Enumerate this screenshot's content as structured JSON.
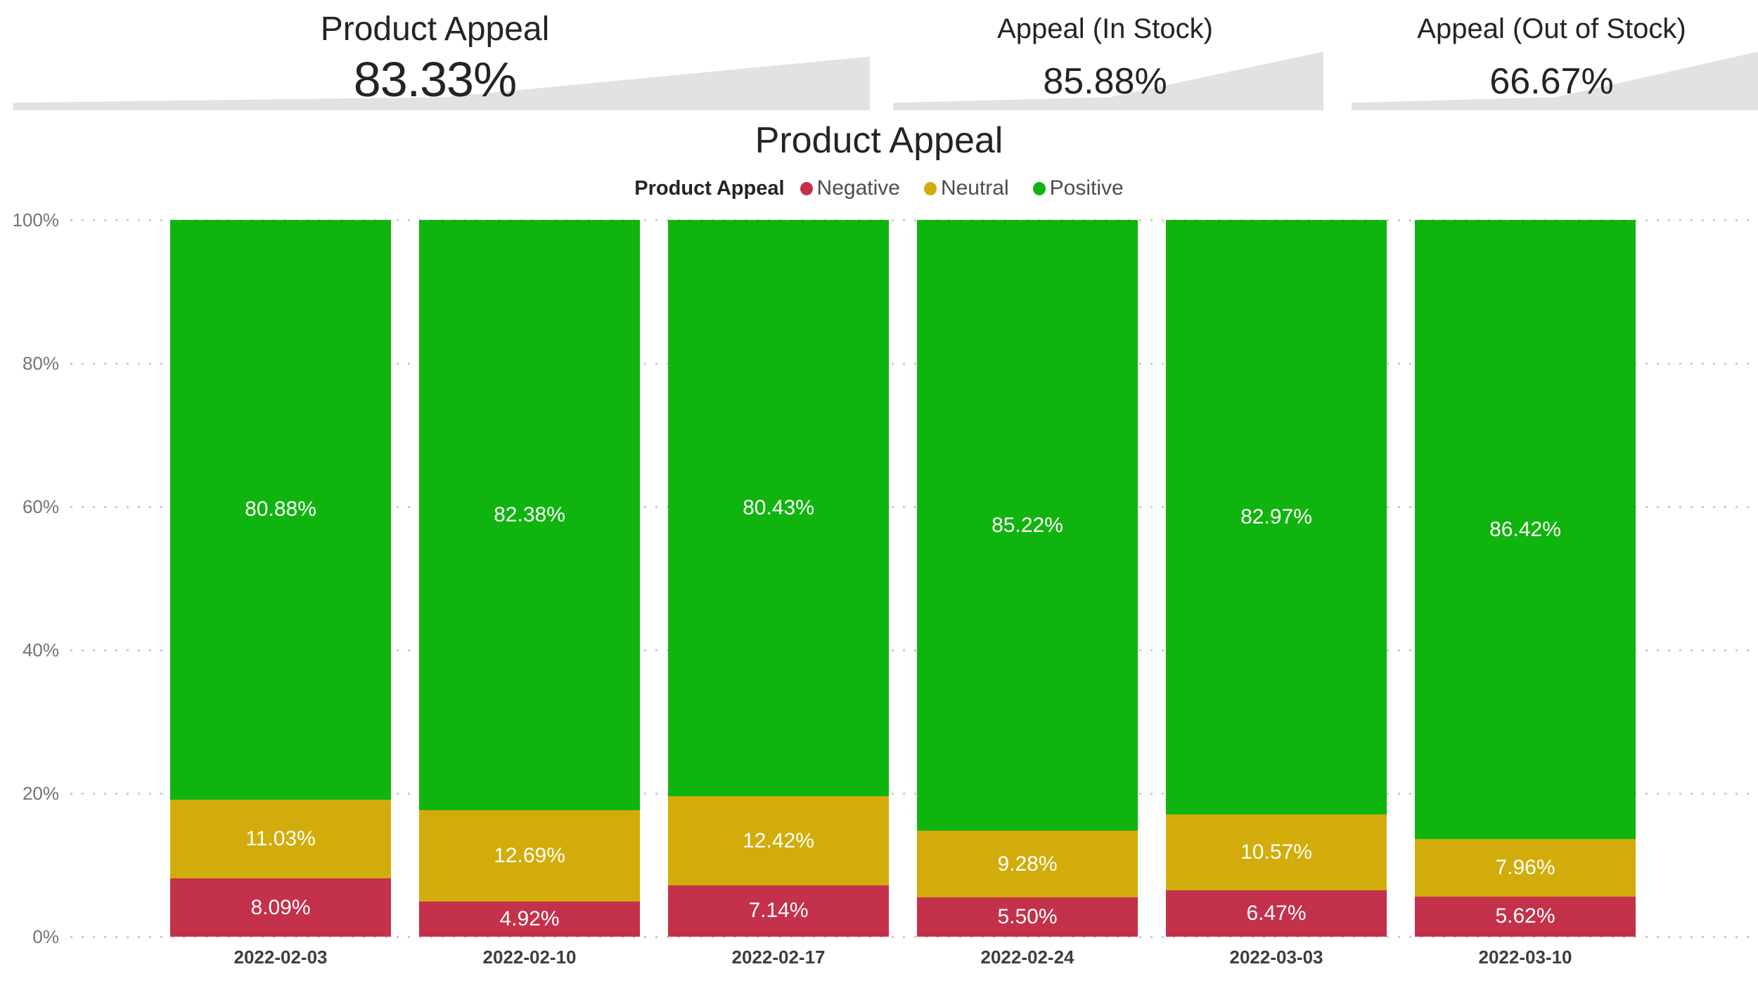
{
  "kpi_cards": [
    {
      "title": "Product Appeal",
      "value": "83.33%"
    },
    {
      "title": "Appeal (In Stock)",
      "value": "85.88%"
    },
    {
      "title": "Appeal (Out of Stock)",
      "value": "66.67%"
    }
  ],
  "chart": {
    "title": "Product Appeal",
    "legend": {
      "title": "Product Appeal",
      "position": "top-center",
      "items": [
        {
          "label": "Negative",
          "color": "#C4314B"
        },
        {
          "label": "Neutral",
          "color": "#D2AC0A"
        },
        {
          "label": "Positive",
          "color": "#10B40F"
        }
      ]
    }
  },
  "chart_data": {
    "type": "bar",
    "stacked": true,
    "orientation": "vertical",
    "title": "Product Appeal",
    "xlabel": "",
    "ylabel": "",
    "ylim": [
      0,
      100
    ],
    "grid": "dotted-horizontal",
    "yticks": [
      "100%",
      "80%",
      "60%",
      "40%",
      "20%",
      "0%"
    ],
    "categories": [
      "2022-02-03",
      "2022-02-10",
      "2022-02-17",
      "2022-02-24",
      "2022-03-03",
      "2022-03-10"
    ],
    "series": [
      {
        "name": "Negative",
        "color": "#C4314B",
        "values": [
          8.09,
          4.92,
          7.14,
          5.5,
          6.47,
          5.62
        ],
        "labels": [
          "8.09%",
          "4.92%",
          "7.14%",
          "5.50%",
          "6.47%",
          "5.62%"
        ]
      },
      {
        "name": "Neutral",
        "color": "#D2AC0A",
        "values": [
          11.03,
          12.69,
          12.42,
          9.28,
          10.57,
          7.96
        ],
        "labels": [
          "11.03%",
          "12.69%",
          "12.42%",
          "9.28%",
          "10.57%",
          "7.96%"
        ]
      },
      {
        "name": "Positive",
        "color": "#10B40F",
        "values": [
          80.88,
          82.38,
          80.43,
          85.22,
          82.97,
          86.42
        ],
        "labels": [
          "80.88%",
          "82.38%",
          "80.43%",
          "85.22%",
          "82.97%",
          "86.42%"
        ]
      }
    ],
    "data_label_color": "#ffffff"
  }
}
